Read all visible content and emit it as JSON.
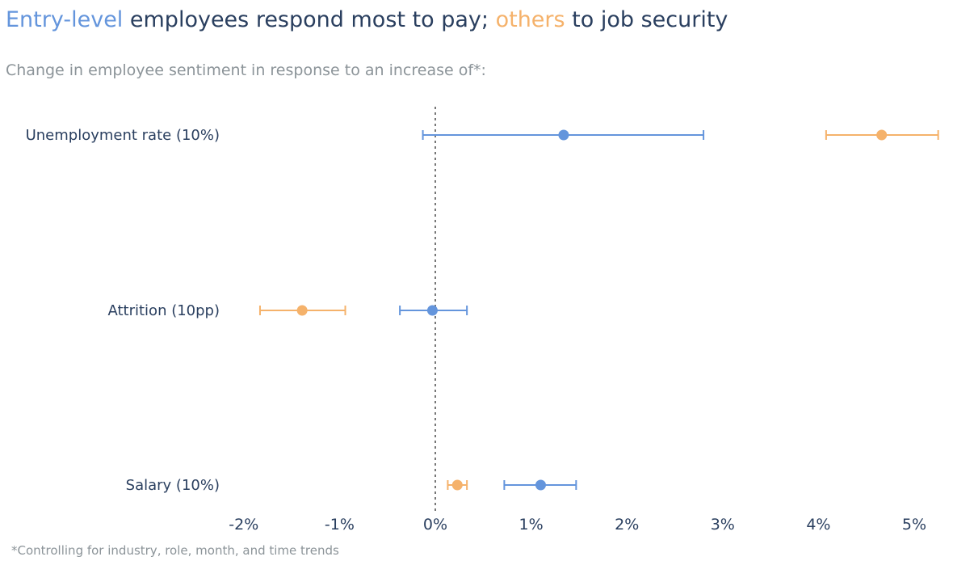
{
  "title": {
    "part1": "Entry-level",
    "part2": " employees respond most to pay; ",
    "part3": "others",
    "part4": " to job security"
  },
  "subtitle": "Change in employee sentiment in response to an increase of*:",
  "footnote": "*Controlling for industry, role, month, and time trends",
  "colors": {
    "entry_level": "#6495dc",
    "others": "#f5b26b",
    "text": "#2a3f5f",
    "muted": "#8c9499",
    "zero_line": "#777777"
  },
  "chart_data": {
    "type": "scatter",
    "orientation": "horizontal",
    "categories": [
      "Unemployment rate (10%)",
      "Attrition (10pp)",
      "Salary (10%)"
    ],
    "xlim": [
      -2.2,
      5.25
    ],
    "x_ticks": [
      -2,
      -1,
      0,
      1,
      2,
      3,
      4,
      5
    ],
    "x_tick_labels": [
      "-2%",
      "-1%",
      "0%",
      "1%",
      "2%",
      "3%",
      "4%",
      "5%"
    ],
    "zero_line": "dotted",
    "grid": false,
    "series": [
      {
        "key": "entry_level",
        "values": [
          1.34,
          -0.03,
          1.1
        ],
        "error_low": [
          -0.13,
          -0.37,
          0.72
        ],
        "error_high": [
          2.8,
          0.33,
          1.47
        ]
      },
      {
        "key": "others",
        "values": [
          4.66,
          -1.39,
          0.23
        ],
        "error_low": [
          4.08,
          -1.83,
          0.13
        ],
        "error_high": [
          5.25,
          -0.94,
          0.33
        ]
      }
    ]
  }
}
